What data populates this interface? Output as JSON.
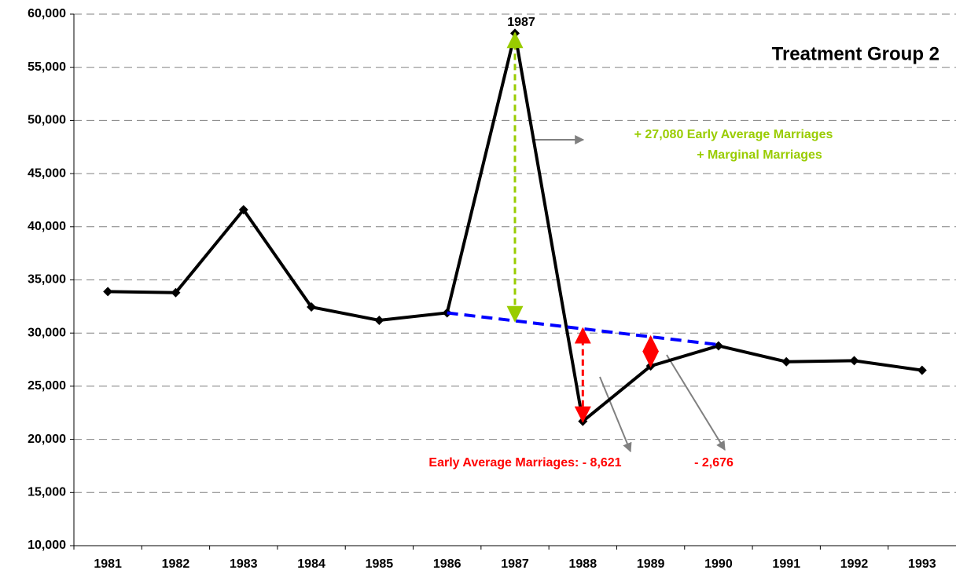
{
  "chart_data": {
    "type": "line",
    "title": "Treatment Group 2",
    "categories": [
      "1981",
      "1982",
      "1983",
      "1984",
      "1985",
      "1986",
      "1987",
      "1988",
      "1989",
      "1990",
      "1991",
      "1992",
      "1993"
    ],
    "series": [
      {
        "color": "#000000",
        "values": [
          33900,
          33800,
          41600,
          32450,
          31200,
          31900,
          58200,
          21700,
          26900,
          28800,
          27300,
          27400,
          26500
        ]
      },
      {
        "color": "#0000ff",
        "values": [
          null,
          null,
          null,
          null,
          null,
          31900,
          31150,
          30400,
          29650,
          28900,
          null,
          null,
          null
        ]
      }
    ],
    "ylim": [
      10000,
      60000
    ],
    "yticks": [
      {
        "value": 10000,
        "label": "10,000"
      },
      {
        "value": 15000,
        "label": "15,000"
      },
      {
        "value": 20000,
        "label": "20,000"
      },
      {
        "value": 25000,
        "label": "25,000"
      },
      {
        "value": 30000,
        "label": "30,000"
      },
      {
        "value": 35000,
        "label": "35,000"
      },
      {
        "value": 40000,
        "label": "40,000"
      },
      {
        "value": 45000,
        "label": "45,000"
      },
      {
        "value": 50000,
        "label": "50,000"
      },
      {
        "value": 55000,
        "label": "55,000"
      },
      {
        "value": 60000,
        "label": "60,000"
      }
    ],
    "grid": true,
    "annotations": [
      "1987",
      "+ 27,080  Early Average Marriages",
      "+ Marginal Marriages",
      "Early Average Marriages:  - 8,621",
      "- 2,676"
    ]
  }
}
